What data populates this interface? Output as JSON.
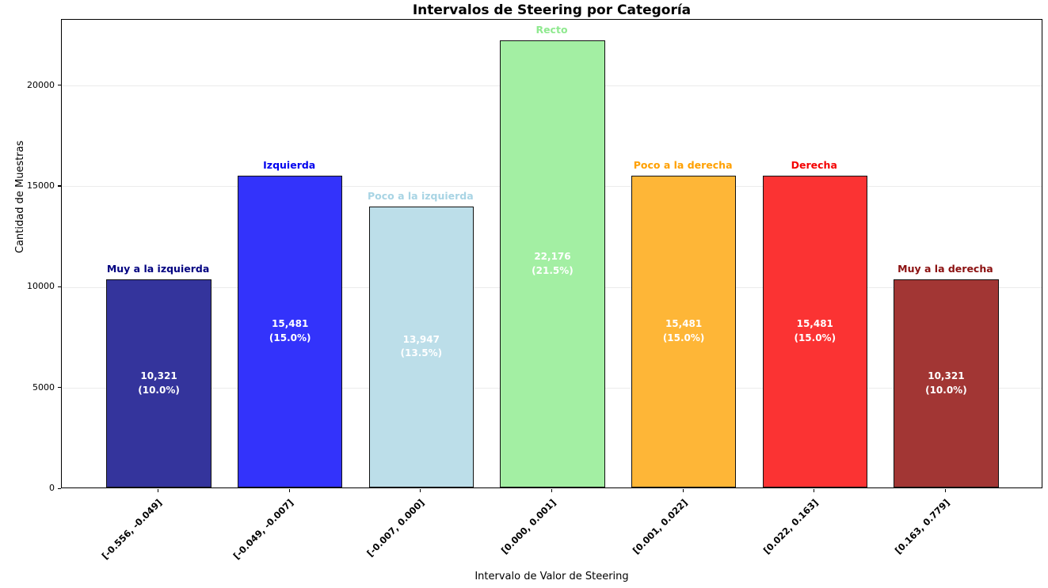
{
  "chart_data": {
    "type": "bar",
    "title": "Intervalos de Steering por Categoría",
    "xlabel": "Intervalo de Valor de Steering",
    "ylabel": "Cantidad de Muestras",
    "ylim": [
      0,
      23285
    ],
    "yticks": [
      0,
      5000,
      10000,
      15000,
      20000
    ],
    "grid": "horizontal-only",
    "grid_color": "#ebebeb",
    "bar_edge_color": "#111111",
    "value_text_color": "#ffffff",
    "categories": [
      {
        "name": "Muy a la izquierda",
        "range": "[-0.556, -0.049]",
        "value": 10321,
        "value_label": "10,321",
        "pct_label": "(10.0%)",
        "bar_color": "#34349c",
        "label_color": "#000080"
      },
      {
        "name": "Izquierda",
        "range": "[-0.049, -0.007]",
        "value": 15481,
        "value_label": "15,481",
        "pct_label": "(15.0%)",
        "bar_color": "#3333fb",
        "label_color": "#0000ee"
      },
      {
        "name": "Poco a la izquierda",
        "range": "[-0.007, 0.000]",
        "value": 13947,
        "value_label": "13,947",
        "pct_label": "(13.5%)",
        "bar_color": "#bcdee9",
        "label_color": "#a8d4e4"
      },
      {
        "name": "Recto",
        "range": "[0.000, 0.001]",
        "value": 22176,
        "value_label": "22,176",
        "pct_label": "(21.5%)",
        "bar_color": "#a3efa3",
        "label_color": "#8fe98f"
      },
      {
        "name": "Poco a la derecha",
        "range": "[0.001, 0.022]",
        "value": 15481,
        "value_label": "15,481",
        "pct_label": "(15.0%)",
        "bar_color": "#feb637",
        "label_color": "#ffa000"
      },
      {
        "name": "Derecha",
        "range": "[0.022, 0.163]",
        "value": 15481,
        "value_label": "15,481",
        "pct_label": "(15.0%)",
        "bar_color": "#fb3333",
        "label_color": "#f40000"
      },
      {
        "name": "Muy a la derecha",
        "range": "[0.163, 0.779]",
        "value": 10321,
        "value_label": "10,321",
        "pct_label": "(10.0%)",
        "bar_color": "#a23634",
        "label_color": "#8b1010"
      }
    ]
  }
}
